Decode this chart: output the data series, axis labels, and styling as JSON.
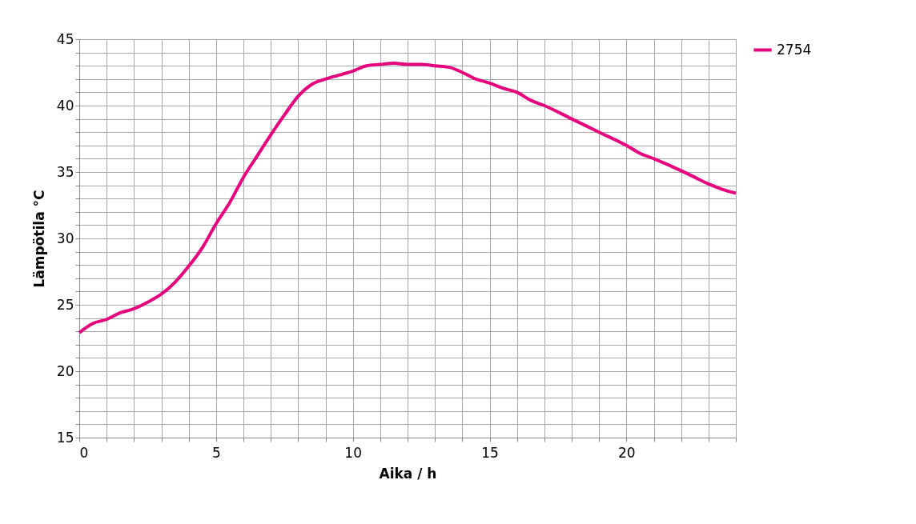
{
  "chart_data": {
    "type": "line",
    "xlabel": "Aika / h",
    "ylabel": "Lämpötila °C",
    "x": [
      0,
      0.5,
      1,
      1.5,
      2,
      2.5,
      3,
      3.5,
      4,
      4.5,
      5,
      5.5,
      6,
      6.5,
      7,
      7.5,
      8,
      8.5,
      9,
      9.5,
      10,
      10.5,
      11,
      11.5,
      12,
      12.5,
      13,
      13.5,
      14,
      14.5,
      15,
      15.5,
      16,
      16.5,
      17,
      18,
      19,
      20,
      20.5,
      21,
      22,
      22.5,
      23,
      23.5,
      24
    ],
    "series": [
      {
        "name": "2754",
        "color": "#e6007e",
        "values": [
          22.9,
          23.6,
          23.9,
          24.4,
          24.7,
          25.2,
          25.8,
          26.7,
          27.9,
          29.3,
          31.1,
          32.7,
          34.6,
          36.2,
          37.8,
          39.3,
          40.7,
          41.6,
          42.0,
          42.3,
          42.6,
          43.0,
          43.1,
          43.2,
          43.1,
          43.1,
          43.0,
          42.9,
          42.5,
          42.0,
          41.7,
          41.3,
          41.0,
          40.4,
          40.0,
          39.0,
          38.0,
          37.0,
          36.4,
          36.0,
          35.1,
          34.6,
          34.1,
          33.7,
          33.4
        ]
      }
    ],
    "xlim": [
      0,
      24
    ],
    "ylim": [
      15,
      45
    ],
    "xticks": [
      0,
      {
        "value": 1,
        "label": null
      },
      {
        "value": 2,
        "label": null
      },
      {
        "value": 3,
        "label": null
      },
      {
        "value": 4,
        "label": null
      },
      5,
      {
        "value": 6,
        "label": null
      },
      {
        "value": 7,
        "label": null
      },
      {
        "value": 8,
        "label": null
      },
      {
        "value": 9,
        "label": null
      },
      10,
      {
        "value": 11,
        "label": null
      },
      {
        "value": 12,
        "label": null
      },
      {
        "value": 13,
        "label": null
      },
      {
        "value": 14,
        "label": null
      },
      15,
      {
        "value": 16,
        "label": null
      },
      {
        "value": 17,
        "label": null
      },
      {
        "value": 18,
        "label": null
      },
      {
        "value": 19,
        "label": null
      },
      20,
      {
        "value": 21,
        "label": null
      },
      {
        "value": 22,
        "label": null
      },
      {
        "value": 23,
        "label": null
      },
      {
        "value": 24,
        "label": null
      }
    ],
    "yticks": [
      15,
      {
        "value": 16,
        "label": null
      },
      {
        "value": 17,
        "label": null
      },
      {
        "value": 18,
        "label": null
      },
      {
        "value": 19,
        "label": null
      },
      20,
      {
        "value": 21,
        "label": null
      },
      {
        "value": 22,
        "label": null
      },
      {
        "value": 23,
        "label": null
      },
      {
        "value": 24,
        "label": null
      },
      25,
      {
        "value": 26,
        "label": null
      },
      {
        "value": 27,
        "label": null
      },
      {
        "value": 28,
        "label": null
      },
      {
        "value": 29,
        "label": null
      },
      30,
      {
        "value": 31,
        "label": null
      },
      {
        "value": 32,
        "label": null
      },
      {
        "value": 33,
        "label": null
      },
      {
        "value": 34,
        "label": null
      },
      35,
      {
        "value": 36,
        "label": null
      },
      {
        "value": 37,
        "label": null
      },
      {
        "value": 38,
        "label": null
      },
      {
        "value": 39,
        "label": null
      },
      40,
      {
        "value": 41,
        "label": null
      },
      {
        "value": 42,
        "label": null
      },
      {
        "value": 43,
        "label": null
      },
      {
        "value": 44,
        "label": null
      },
      45
    ],
    "grid": true,
    "legend": "right",
    "marker": "none",
    "line_style": "solid"
  }
}
